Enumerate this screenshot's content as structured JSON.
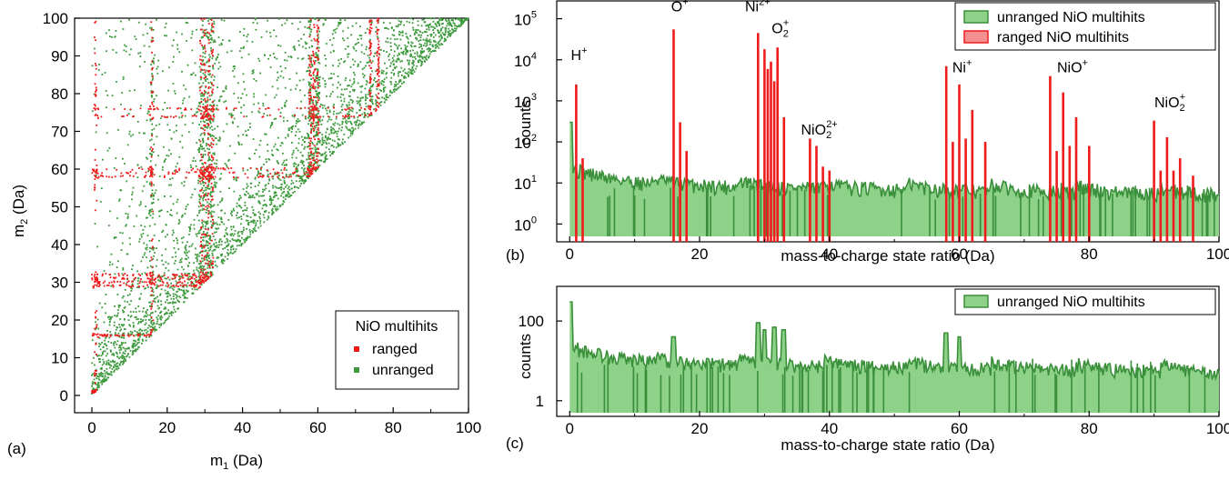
{
  "panels": {
    "a": "(a)",
    "b": "(b)",
    "c": "(c)"
  },
  "colors": {
    "ranged": "#ee1c1c",
    "unranged": "#3c9a3c",
    "unranged_fill": "#8ed28a",
    "unranged_line": "#3a8f3a"
  },
  "chart_data": [
    {
      "id": "a",
      "type": "scatter",
      "xlabel_main": "m",
      "xlabel_sub": "1",
      "xlabel_unit": " (Da)",
      "ylabel_main": "m",
      "ylabel_sub": "2",
      "ylabel_unit": " (Da)",
      "xlim": [
        0,
        100
      ],
      "ylim": [
        0,
        100
      ],
      "xticks": [
        "0",
        "20",
        "40",
        "60",
        "80",
        "100"
      ],
      "yticks": [
        "0",
        "10",
        "20",
        "30",
        "40",
        "50",
        "60",
        "70",
        "80",
        "90",
        "100"
      ],
      "legend_title": "NiO multihits",
      "legend_position": "lower-right",
      "series": [
        {
          "name": "ranged",
          "color": "#ee1c1c",
          "ion_masses": [
            1,
            16,
            29,
            30,
            31,
            32,
            58,
            59,
            60,
            74,
            76
          ]
        },
        {
          "name": "unranged",
          "color": "#3c9a3c",
          "line_slopes": [
            1.1,
            1.2,
            1.33,
            1.5,
            1.7,
            2.0,
            2.3,
            2.7,
            3.2,
            4.0,
            5.0,
            7.0,
            10.0
          ]
        }
      ]
    },
    {
      "id": "b",
      "type": "bar",
      "scale": "log",
      "xlabel": "mass-to-charge state ratio (Da)",
      "ylabel": "counts",
      "xlim": [
        -2,
        100
      ],
      "ylim": [
        0.5,
        200000
      ],
      "xticks": [
        "0",
        "20",
        "40",
        "60",
        "80",
        "100"
      ],
      "yticks": [
        {
          "base": "10",
          "exp": "0"
        },
        {
          "base": "10",
          "exp": "1"
        },
        {
          "base": "10",
          "exp": "2"
        },
        {
          "base": "10",
          "exp": "3"
        },
        {
          "base": "10",
          "exp": "4"
        },
        {
          "base": "10",
          "exp": "5"
        }
      ],
      "legend_position": "top-right",
      "series": [
        {
          "name": "unranged NiO multihits",
          "color": "#3c9a3c",
          "baseline": 10
        },
        {
          "name": "ranged NiO multihits",
          "color": "#ee1c1c",
          "peaks": [
            {
              "x": 1,
              "y": 2500
            },
            {
              "x": 2,
              "y": 40
            },
            {
              "x": 16,
              "y": 55000
            },
            {
              "x": 17,
              "y": 300
            },
            {
              "x": 18,
              "y": 60
            },
            {
              "x": 29,
              "y": 45000
            },
            {
              "x": 30,
              "y": 18000
            },
            {
              "x": 30.5,
              "y": 6000
            },
            {
              "x": 31,
              "y": 9000
            },
            {
              "x": 31.5,
              "y": 3000
            },
            {
              "x": 32,
              "y": 20000
            },
            {
              "x": 33,
              "y": 400
            },
            {
              "x": 37,
              "y": 120
            },
            {
              "x": 38,
              "y": 80
            },
            {
              "x": 39,
              "y": 25
            },
            {
              "x": 40,
              "y": 20
            },
            {
              "x": 58,
              "y": 7000
            },
            {
              "x": 59,
              "y": 100
            },
            {
              "x": 60,
              "y": 2500
            },
            {
              "x": 61,
              "y": 120
            },
            {
              "x": 62,
              "y": 600
            },
            {
              "x": 64,
              "y": 100
            },
            {
              "x": 74,
              "y": 4000
            },
            {
              "x": 75,
              "y": 60
            },
            {
              "x": 76,
              "y": 1600
            },
            {
              "x": 77,
              "y": 80
            },
            {
              "x": 78,
              "y": 400
            },
            {
              "x": 80,
              "y": 80
            },
            {
              "x": 90,
              "y": 330
            },
            {
              "x": 91,
              "y": 20
            },
            {
              "x": 92,
              "y": 130
            },
            {
              "x": 93,
              "y": 20
            },
            {
              "x": 94,
              "y": 40
            },
            {
              "x": 96,
              "y": 15
            }
          ]
        }
      ],
      "annotations": [
        {
          "base": "H",
          "sup": "+",
          "sub": "",
          "x": 2,
          "y": 10000
        },
        {
          "base": "O",
          "sup": "+",
          "sub": "",
          "x": 17.5,
          "y": 150000
        },
        {
          "base": "Ni",
          "sup": "2+",
          "sub": "",
          "x": 29.5,
          "y": 150000
        },
        {
          "base": "O",
          "sup": "+",
          "sub": "2",
          "x": 33,
          "y": 45000
        },
        {
          "base": "NiO",
          "sup": "2+",
          "sub": "2",
          "x": 39,
          "y": 150
        },
        {
          "base": "Ni",
          "sup": "+",
          "sub": "",
          "x": 61,
          "y": 5000
        },
        {
          "base": "NiO",
          "sup": "+",
          "sub": "",
          "x": 78,
          "y": 5000
        },
        {
          "base": "NiO",
          "sup": "+",
          "sub": "2",
          "x": 93,
          "y": 700
        }
      ]
    },
    {
      "id": "c",
      "type": "bar",
      "scale": "log",
      "xlabel": "mass-to-charge state ratio (Da)",
      "ylabel": "counts",
      "xlim": [
        -2,
        100
      ],
      "ylim": [
        0.5,
        600
      ],
      "xticks": [
        "0",
        "20",
        "40",
        "60",
        "80",
        "100"
      ],
      "yticks": [
        "1",
        "100"
      ],
      "legend_position": "top-right",
      "series": [
        {
          "name": "unranged NiO multihits",
          "color": "#3c9a3c",
          "baseline": 10
        }
      ]
    }
  ]
}
